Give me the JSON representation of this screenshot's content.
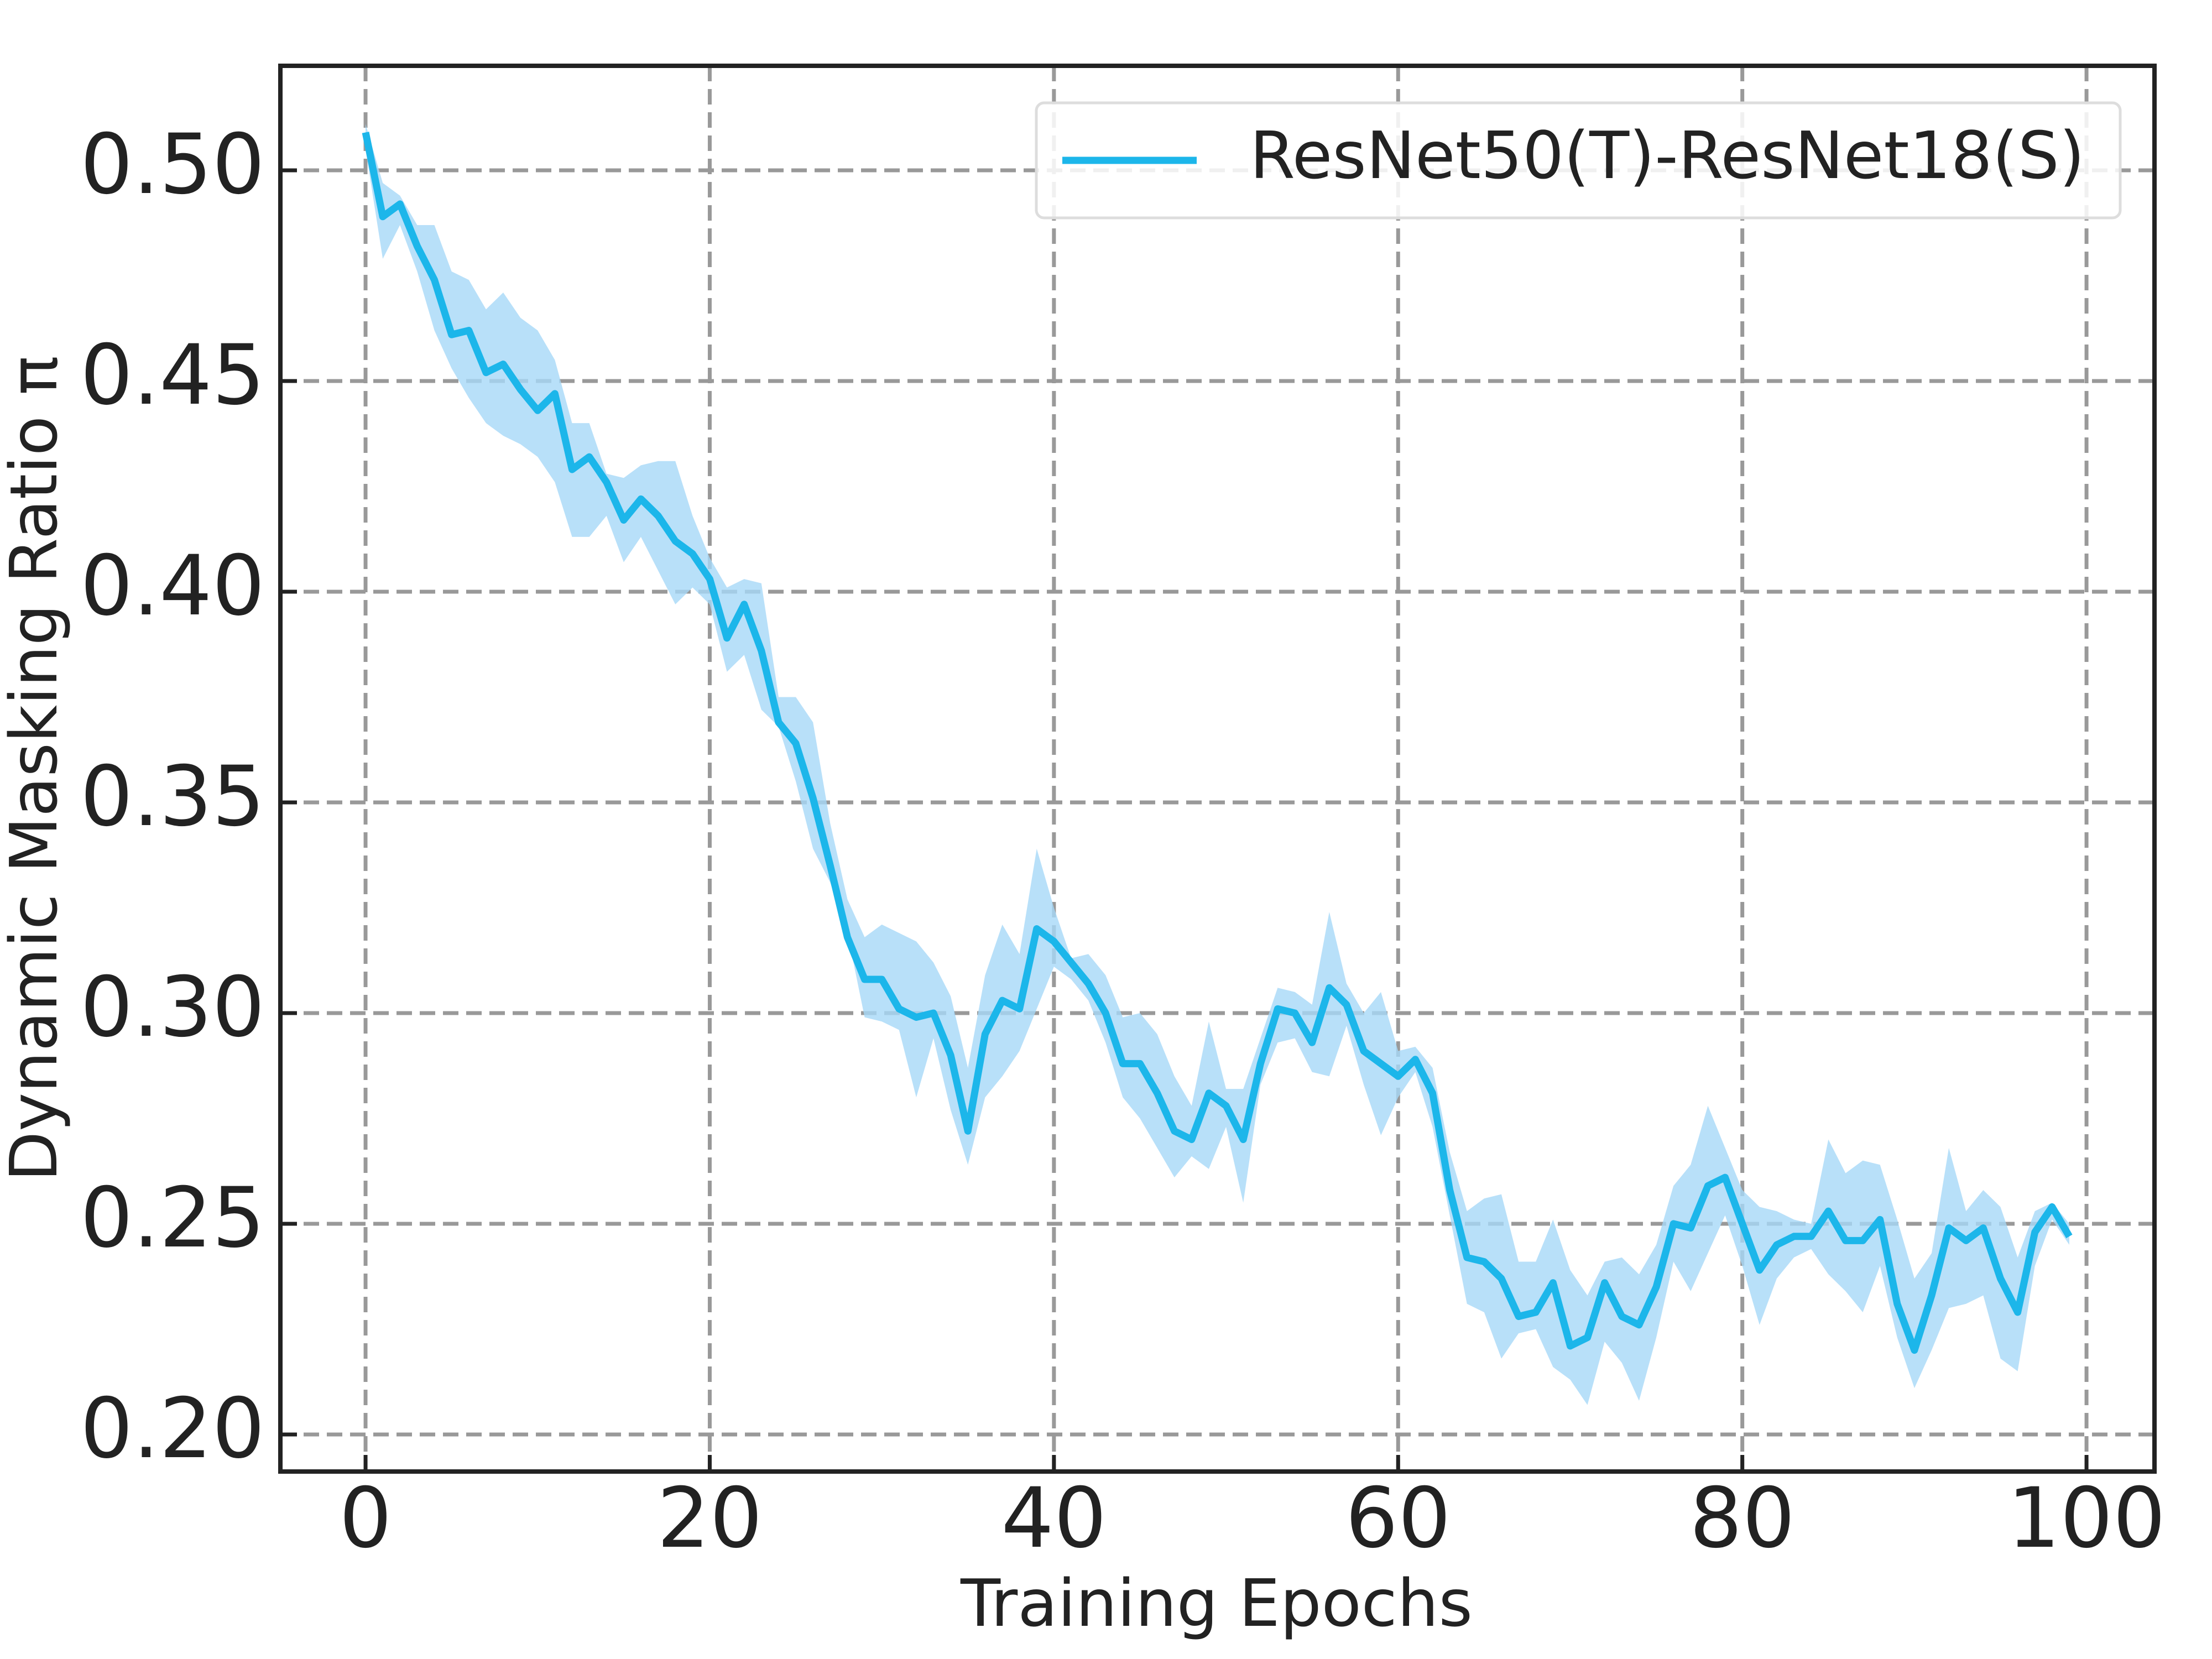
{
  "chart_data": {
    "type": "line",
    "xlabel": "Training Epochs",
    "ylabel": "Dynamic Masking Ratio π",
    "x": [
      0,
      1,
      2,
      3,
      4,
      5,
      6,
      7,
      8,
      9,
      10,
      11,
      12,
      13,
      14,
      15,
      16,
      17,
      18,
      19,
      20,
      21,
      22,
      23,
      24,
      25,
      26,
      27,
      28,
      29,
      30,
      31,
      32,
      33,
      34,
      35,
      36,
      37,
      38,
      39,
      40,
      41,
      42,
      43,
      44,
      45,
      46,
      47,
      48,
      49,
      50,
      51,
      52,
      53,
      54,
      55,
      56,
      57,
      58,
      59,
      60,
      61,
      62,
      63,
      64,
      65,
      66,
      67,
      68,
      69,
      70,
      71,
      72,
      73,
      74,
      75,
      76,
      77,
      78,
      79,
      80,
      81,
      82,
      83,
      84,
      85,
      86,
      87,
      88,
      89,
      90,
      91,
      92,
      93,
      94,
      95,
      96,
      97,
      98,
      99
    ],
    "series": [
      {
        "name": "ResNet50(T)-ResNet18(S)",
        "color": "#1cb6ea",
        "band_color": "#a6d8f7",
        "values": [
          0.509,
          0.489,
          0.492,
          0.482,
          0.474,
          0.461,
          0.462,
          0.452,
          0.454,
          0.448,
          0.443,
          0.447,
          0.429,
          0.432,
          0.426,
          0.417,
          0.422,
          0.418,
          0.412,
          0.409,
          0.403,
          0.389,
          0.397,
          0.386,
          0.369,
          0.364,
          0.351,
          0.335,
          0.318,
          0.308,
          0.308,
          0.301,
          0.299,
          0.3,
          0.29,
          0.272,
          0.295,
          0.303,
          0.301,
          0.32,
          0.317,
          0.312,
          0.307,
          0.3,
          0.288,
          0.288,
          0.281,
          0.272,
          0.27,
          0.281,
          0.278,
          0.27,
          0.288,
          0.301,
          0.3,
          0.293,
          0.306,
          0.302,
          0.291,
          0.288,
          0.285,
          0.289,
          0.281,
          0.258,
          0.242,
          0.241,
          0.237,
          0.228,
          0.229,
          0.236,
          0.221,
          0.223,
          0.236,
          0.228,
          0.226,
          0.235,
          0.25,
          0.249,
          0.259,
          0.261,
          0.25,
          0.239,
          0.245,
          0.247,
          0.247,
          0.253,
          0.246,
          0.246,
          0.251,
          0.231,
          0.22,
          0.233,
          0.249,
          0.246,
          0.249,
          0.237,
          0.229,
          0.248,
          0.254,
          0.247
        ],
        "lower": [
          0.505,
          0.479,
          0.487,
          0.476,
          0.462,
          0.453,
          0.446,
          0.44,
          0.437,
          0.435,
          0.432,
          0.426,
          0.413,
          0.413,
          0.418,
          0.407,
          0.413,
          0.405,
          0.397,
          0.401,
          0.397,
          0.381,
          0.385,
          0.372,
          0.368,
          0.355,
          0.339,
          0.331,
          0.319,
          0.299,
          0.298,
          0.296,
          0.28,
          0.294,
          0.277,
          0.264,
          0.28,
          0.285,
          0.291,
          0.301,
          0.311,
          0.308,
          0.303,
          0.293,
          0.28,
          0.275,
          0.268,
          0.261,
          0.266,
          0.263,
          0.273,
          0.255,
          0.283,
          0.293,
          0.294,
          0.286,
          0.285,
          0.297,
          0.283,
          0.271,
          0.28,
          0.286,
          0.273,
          0.252,
          0.231,
          0.229,
          0.218,
          0.224,
          0.225,
          0.216,
          0.213,
          0.207,
          0.222,
          0.217,
          0.208,
          0.223,
          0.241,
          0.234,
          0.243,
          0.252,
          0.24,
          0.226,
          0.237,
          0.242,
          0.244,
          0.238,
          0.234,
          0.229,
          0.24,
          0.223,
          0.211,
          0.22,
          0.23,
          0.231,
          0.233,
          0.218,
          0.215,
          0.24,
          0.251,
          0.245
        ],
        "upper": [
          0.511,
          0.497,
          0.494,
          0.487,
          0.487,
          0.476,
          0.474,
          0.467,
          0.471,
          0.465,
          0.462,
          0.455,
          0.44,
          0.44,
          0.428,
          0.427,
          0.43,
          0.431,
          0.431,
          0.418,
          0.408,
          0.401,
          0.403,
          0.402,
          0.375,
          0.375,
          0.369,
          0.345,
          0.327,
          0.318,
          0.321,
          0.319,
          0.317,
          0.312,
          0.304,
          0.287,
          0.309,
          0.321,
          0.314,
          0.339,
          0.325,
          0.313,
          0.314,
          0.309,
          0.299,
          0.3,
          0.295,
          0.285,
          0.278,
          0.298,
          0.282,
          0.282,
          0.294,
          0.306,
          0.305,
          0.302,
          0.324,
          0.307,
          0.3,
          0.305,
          0.291,
          0.292,
          0.287,
          0.267,
          0.253,
          0.256,
          0.257,
          0.241,
          0.241,
          0.251,
          0.239,
          0.233,
          0.241,
          0.242,
          0.238,
          0.245,
          0.259,
          0.264,
          0.278,
          0.268,
          0.258,
          0.254,
          0.253,
          0.251,
          0.25,
          0.27,
          0.262,
          0.265,
          0.264,
          0.251,
          0.237,
          0.243,
          0.268,
          0.253,
          0.258,
          0.254,
          0.242,
          0.253,
          0.255,
          0.25
        ]
      }
    ],
    "xlim": [
      -4.95,
      103.95
    ],
    "ylim": [
      0.1912,
      0.5248
    ],
    "xticks": [
      0,
      20,
      40,
      60,
      80,
      100
    ],
    "yticks": [
      {
        "value": 0.2,
        "label": "0.20"
      },
      {
        "value": 0.25,
        "label": "0.25"
      },
      {
        "value": 0.3,
        "label": "0.30"
      },
      {
        "value": 0.35,
        "label": "0.35"
      },
      {
        "value": 0.4,
        "label": "0.40"
      },
      {
        "value": 0.45,
        "label": "0.45"
      },
      {
        "value": 0.5,
        "label": "0.50"
      }
    ],
    "grid": true,
    "legend": "upper right"
  }
}
